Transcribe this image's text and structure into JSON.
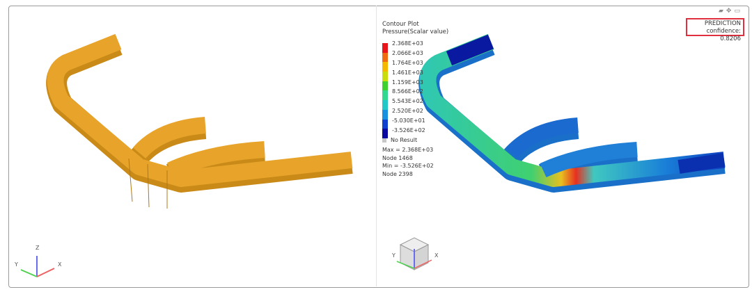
{
  "legend": {
    "title": "Contour Plot",
    "subtitle": "Pressure(Scalar value)",
    "levels": [
      "2.368E+03",
      "2.066E+03",
      "1.764E+03",
      "1.461E+03",
      "1.159E+03",
      "8.566E+02",
      "5.543E+02",
      "2.520E+02",
      "-5.030E+01",
      "-3.526E+02"
    ],
    "colors": [
      "#e8141a",
      "#f06a10",
      "#f5b800",
      "#c8dc10",
      "#40d030",
      "#30d890",
      "#20c8c8",
      "#1890e0",
      "#1040d0",
      "#0a0aa0"
    ],
    "no_result": "No Result",
    "max": "Max = 2.368E+03",
    "max_node": "Node 1468",
    "min": "Min = -3.526E+02",
    "min_node": "Node 2398"
  },
  "prediction": {
    "label": "PREDICTION",
    "confidence": "confidence: 0.8206",
    "border_color": "#e03040"
  },
  "toolbar": {
    "icons": [
      "layers-icon",
      "move-icon",
      "maximize-icon"
    ]
  },
  "axes": {
    "x": "X",
    "y": "Y",
    "z": "Z"
  },
  "model_color": "#e8a42a"
}
